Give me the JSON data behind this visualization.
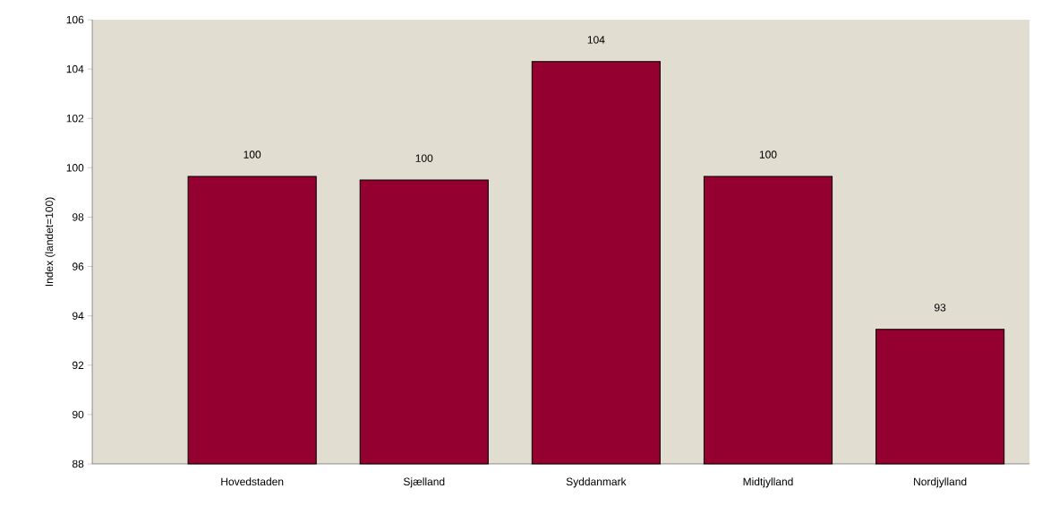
{
  "chart_data": {
    "type": "bar",
    "ylabel": "Index (landet=100)",
    "categories": [
      "Hovedstaden",
      "Sjælland",
      "Syddanmark",
      "Midtjylland",
      "Nordjylland"
    ],
    "values": [
      99.65,
      99.5,
      104.3,
      99.65,
      93.45
    ],
    "value_labels": [
      "100",
      "100",
      "104",
      "100",
      "93"
    ],
    "color": "#940030",
    "ylim": [
      88,
      106
    ],
    "yticks": [
      88,
      90,
      92,
      94,
      96,
      98,
      100,
      102,
      104,
      106
    ],
    "grid": false
  }
}
